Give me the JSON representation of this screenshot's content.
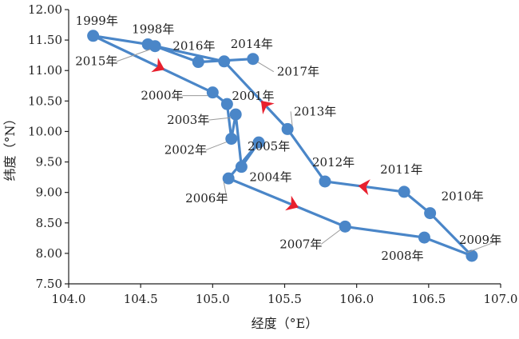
{
  "chart_data": {
    "type": "line",
    "xlabel": "经度（°E）",
    "ylabel": "纬度（°N）",
    "xlim": [
      104.0,
      107.0
    ],
    "ylim": [
      7.5,
      12.0
    ],
    "x_ticks": [
      "104.0",
      "104.5",
      "105.0",
      "105.5",
      "106.0",
      "106.5",
      "107.0"
    ],
    "y_ticks": [
      "7.50",
      "8.00",
      "8.50",
      "9.00",
      "9.50",
      "10.00",
      "10.50",
      "11.00",
      "11.50",
      "12.00"
    ],
    "grid": false,
    "legend": "none",
    "line_color": "#4a86c8",
    "arrow_color": "#e8202e",
    "points": [
      {
        "year": "1999年",
        "lon": 104.17,
        "lat": 11.57
      },
      {
        "year": "2000年",
        "lon": 105.0,
        "lat": 10.64
      },
      {
        "year": "2001年",
        "lon": 105.1,
        "lat": 10.45
      },
      {
        "year": "2002年",
        "lon": 105.13,
        "lat": 9.88
      },
      {
        "year": "2003年",
        "lon": 105.16,
        "lat": 10.28
      },
      {
        "year": "2004年",
        "lon": 105.2,
        "lat": 9.42
      },
      {
        "year": "2005年",
        "lon": 105.32,
        "lat": 9.82
      },
      {
        "year": "2006年",
        "lon": 105.11,
        "lat": 9.23
      },
      {
        "year": "2007年",
        "lon": 105.92,
        "lat": 8.44
      },
      {
        "year": "2008年",
        "lon": 106.47,
        "lat": 8.26
      },
      {
        "year": "2009年",
        "lon": 106.8,
        "lat": 7.96
      },
      {
        "year": "2010年",
        "lon": 106.51,
        "lat": 8.66
      },
      {
        "year": "2011年",
        "lon": 106.33,
        "lat": 9.01
      },
      {
        "year": "2012年",
        "lon": 105.78,
        "lat": 9.18
      },
      {
        "year": "2013年",
        "lon": 105.52,
        "lat": 10.04
      },
      {
        "year": "2014年",
        "lon": 105.08,
        "lat": 11.15
      },
      {
        "year": "2015年",
        "lon": 104.6,
        "lat": 11.4
      },
      {
        "year": "2016年",
        "lon": 104.9,
        "lat": 11.14
      },
      {
        "year": "2017年",
        "lon": 105.28,
        "lat": 11.19
      },
      {
        "year": "1998年",
        "lon": 104.55,
        "lat": 11.43
      }
    ],
    "path_order": [
      "1998年",
      "1999年",
      "2000年",
      "2001年",
      "2002年",
      "2003年",
      "2004年",
      "2005年",
      "2006年",
      "2007年",
      "2008年",
      "2009年",
      "2010年",
      "2011年",
      "2012年",
      "2013年",
      "2014年",
      "2015年",
      "2016年",
      "2017年"
    ]
  }
}
